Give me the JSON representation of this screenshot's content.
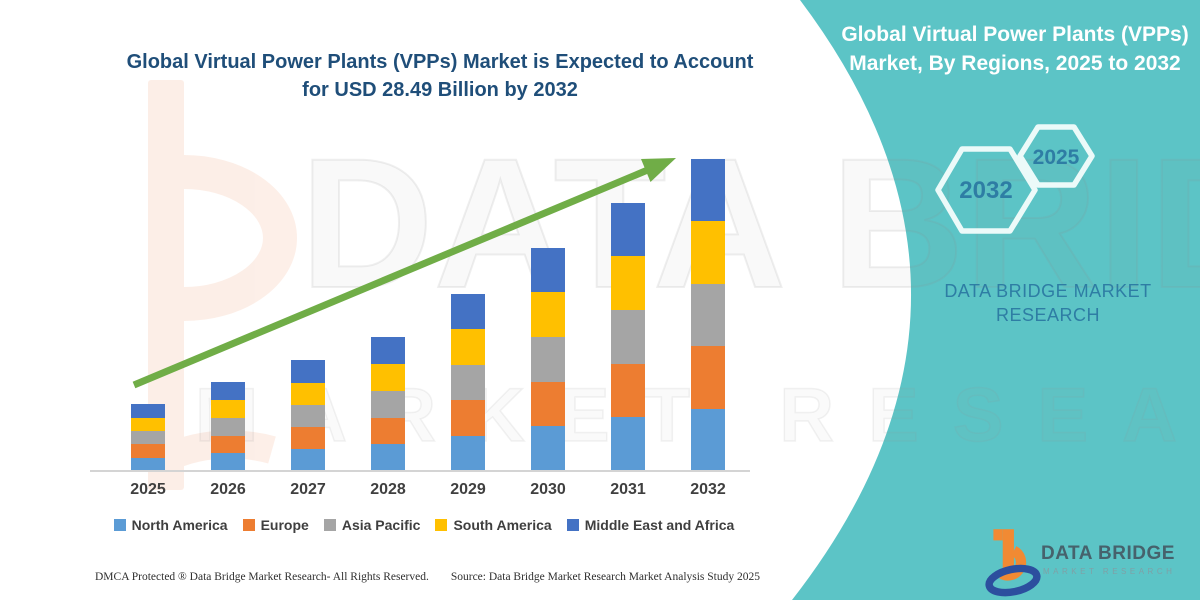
{
  "colors": {
    "teal": "#5CC4C6",
    "title_navy": "#1F4E79",
    "accent_blue": "#2E7DA4",
    "hex_stroke": "#ECFAF9",
    "arrow_green": "#70AD47",
    "axis_text": "#3F3F3F",
    "baseline_gray": "#D4D4D4",
    "watermark_peach": "#F5B795",
    "logo_orange": "#F18A33",
    "logo_blue": "#2C4F9E",
    "logo_text": "#46626C",
    "logo_sub": "#7FA0A6",
    "footer_text": "#2F2F2F"
  },
  "left_panel": {
    "title_line1": "Global Virtual Power Plants (VPPs) Market is Expected to Account",
    "title_line2": "for USD 28.49 Billion by 2032"
  },
  "chart_data": {
    "type": "bar",
    "stacked": true,
    "title": "Global Virtual Power Plants (VPPs) Market is Expected to Account for USD 28.49 Billion by 2032",
    "categories": [
      "2025",
      "2026",
      "2027",
      "2028",
      "2029",
      "2030",
      "2031",
      "2032"
    ],
    "totals_usd_billion": [
      6.1,
      8.1,
      10.1,
      12.2,
      16.2,
      20.4,
      24.5,
      28.49
    ],
    "series": [
      {
        "name": "North America",
        "color": "#5B9BD5",
        "values": [
          1.22,
          1.62,
          2.02,
          2.44,
          3.24,
          4.08,
          4.9,
          5.7
        ]
      },
      {
        "name": "Europe",
        "color": "#ED7D31",
        "values": [
          1.22,
          1.62,
          2.02,
          2.44,
          3.24,
          4.08,
          4.9,
          5.7
        ]
      },
      {
        "name": "Asia Pacific",
        "color": "#A5A5A5",
        "values": [
          1.22,
          1.62,
          2.02,
          2.44,
          3.24,
          4.08,
          4.9,
          5.7
        ]
      },
      {
        "name": "South America",
        "color": "#FFC000",
        "values": [
          1.22,
          1.62,
          2.02,
          2.44,
          3.24,
          4.08,
          4.9,
          5.7
        ]
      },
      {
        "name": "Middle East and Africa",
        "color": "#4472C4",
        "values": [
          1.22,
          1.62,
          2.02,
          2.44,
          3.24,
          4.08,
          4.9,
          5.7
        ]
      }
    ],
    "ylim": [
      0,
      30
    ],
    "y_axis_shown": false,
    "grid": false,
    "legend_position": "bottom",
    "annotations": [
      "upward trend arrow from 2025 to 2032"
    ]
  },
  "right_panel": {
    "title_line1": "Global Virtual Power Plants (VPPs)",
    "title_line2": "Market, By Regions, 2025 to 2032",
    "hex_large_label": "2032",
    "hex_small_label": "2025",
    "brand_line1": "DATA BRIDGE MARKET",
    "brand_line2": "RESEARCH"
  },
  "logo": {
    "name": "DATA BRIDGE",
    "sub": "MARKET RESEARCH"
  },
  "watermark": {
    "line1": "DATA BRIDGE",
    "line2": "MARKET RESEARCH"
  },
  "footer": {
    "left": "DMCA Protected ® Data Bridge Market Research-  All Rights Reserved.",
    "right": "Source: Data Bridge Market Research  Market Analysis Study 2025"
  }
}
